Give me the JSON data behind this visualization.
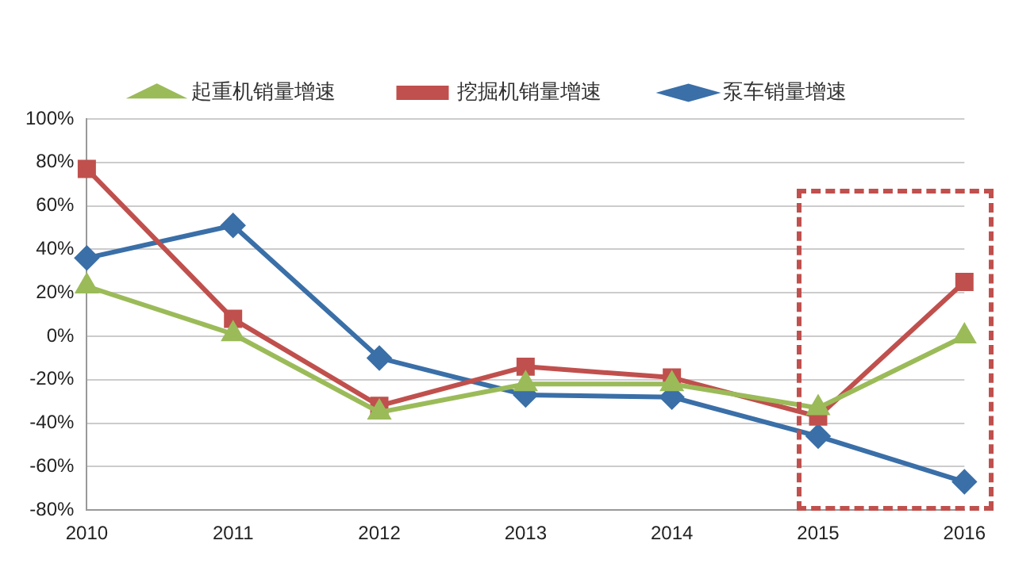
{
  "chart_data": {
    "type": "line",
    "categories": [
      "2010",
      "2011",
      "2012",
      "2013",
      "2014",
      "2015",
      "2016"
    ],
    "series": [
      {
        "name": "泵车销量增速",
        "color": "#3a6fa8",
        "marker": "diamond",
        "values": [
          36,
          51,
          -10,
          -27,
          -28,
          -46,
          -67
        ]
      },
      {
        "name": "挖掘机销量增速",
        "color": "#c0504d",
        "marker": "square",
        "values": [
          77,
          8,
          -32,
          -14,
          -19,
          -37,
          25
        ]
      },
      {
        "name": "起重机销量增速",
        "color": "#9bbb59",
        "marker": "triangle",
        "values": [
          23,
          1,
          -35,
          -22,
          -22,
          -33,
          0
        ]
      }
    ],
    "ylim": [
      -80,
      100
    ],
    "yticks": [
      {
        "value": -80,
        "label": "-80%"
      },
      {
        "value": -60,
        "label": "-60%"
      },
      {
        "value": -40,
        "label": "-40%"
      },
      {
        "value": -20,
        "label": "-20%"
      },
      {
        "value": 0,
        "label": "0%"
      },
      {
        "value": 20,
        "label": "20%"
      },
      {
        "value": 40,
        "label": "40%"
      },
      {
        "value": 60,
        "label": "60%"
      },
      {
        "value": 80,
        "label": "80%"
      },
      {
        "value": 100,
        "label": "100%"
      }
    ],
    "grid": "y",
    "legend": "top",
    "line_style": "solid"
  }
}
